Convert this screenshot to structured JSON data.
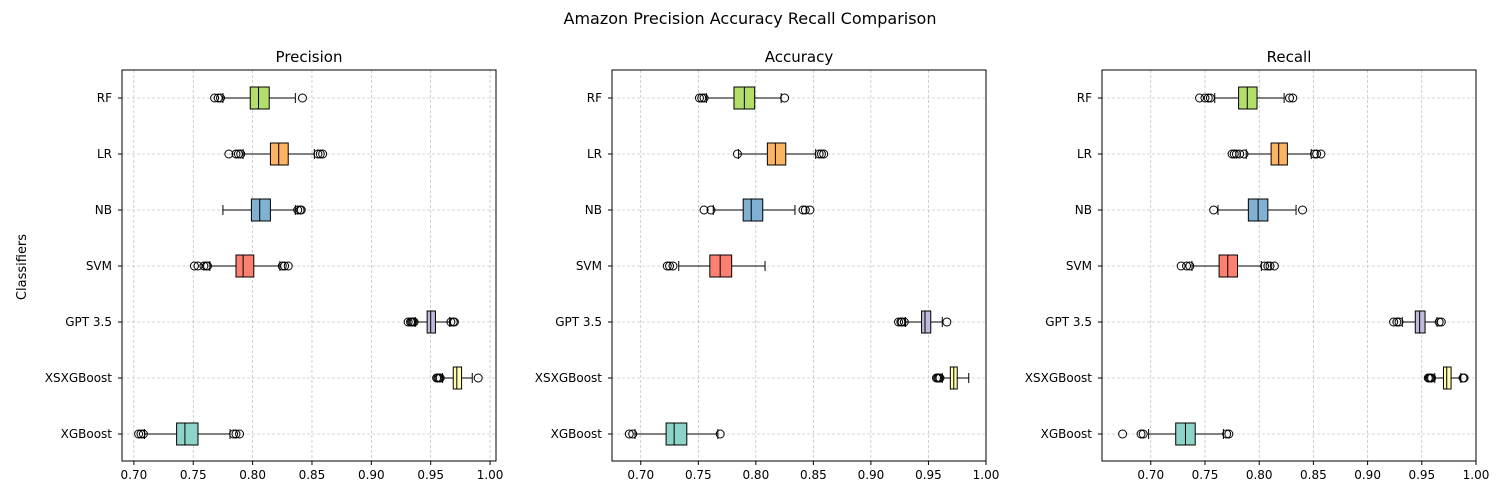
{
  "suptitle": "Amazon Precision Accuracy Recall Comparison",
  "ylabel": "Classifiers",
  "colors": {
    "XGBoost": "#8dd3c7",
    "XSXGBoost": "#ffffb3",
    "GPT 3.5": "#bebada",
    "SVM": "#fb8072",
    "NB": "#80b1d3",
    "LR": "#fdb462",
    "RF": "#b3de69"
  },
  "chart_data": [
    {
      "type": "boxplot",
      "orientation": "horizontal",
      "title": "Precision",
      "xlim": [
        0.69,
        1.005
      ],
      "xticks": [
        "0.70",
        "0.75",
        "0.80",
        "0.85",
        "0.90",
        "0.95",
        "1.00"
      ],
      "grid": true,
      "categories": [
        "XGBoost",
        "XSXGBoost",
        "GPT 3.5",
        "SVM",
        "NB",
        "LR",
        "RF"
      ],
      "boxes": [
        {
          "label": "XGBoost",
          "whislo": 0.709,
          "q1": 0.736,
          "med": 0.743,
          "q3": 0.754,
          "whishi": 0.781,
          "fliers": [
            0.704,
            0.706,
            0.708,
            0.784,
            0.786,
            0.789
          ]
        },
        {
          "label": "XSXGBoost",
          "whislo": 0.96,
          "q1": 0.969,
          "med": 0.972,
          "q3": 0.976,
          "whishi": 0.985,
          "fliers": [
            0.955,
            0.956,
            0.957,
            0.958,
            0.99
          ]
        },
        {
          "label": "GPT 3.5",
          "whislo": 0.937,
          "q1": 0.947,
          "med": 0.95,
          "q3": 0.954,
          "whishi": 0.966,
          "fliers": [
            0.931,
            0.933,
            0.934,
            0.935,
            0.936,
            0.967,
            0.969,
            0.97
          ]
        },
        {
          "label": "SVM",
          "whislo": 0.764,
          "q1": 0.786,
          "med": 0.792,
          "q3": 0.801,
          "whishi": 0.823,
          "fliers": [
            0.751,
            0.754,
            0.759,
            0.761,
            0.762,
            0.825,
            0.827,
            0.83
          ]
        },
        {
          "label": "NB",
          "whislo": 0.775,
          "q1": 0.799,
          "med": 0.806,
          "q3": 0.815,
          "whishi": 0.836,
          "fliers": [
            0.838,
            0.84,
            0.841
          ]
        },
        {
          "label": "LR",
          "whislo": 0.792,
          "q1": 0.815,
          "med": 0.822,
          "q3": 0.83,
          "whishi": 0.852,
          "fliers": [
            0.78,
            0.786,
            0.788,
            0.79,
            0.855,
            0.857,
            0.859
          ]
        },
        {
          "label": "RF",
          "whislo": 0.775,
          "q1": 0.798,
          "med": 0.805,
          "q3": 0.814,
          "whishi": 0.836,
          "fliers": [
            0.768,
            0.771,
            0.773,
            0.842
          ]
        }
      ]
    },
    {
      "type": "boxplot",
      "orientation": "horizontal",
      "title": "Accuracy",
      "xlim": [
        0.675,
        1.0
      ],
      "xticks": [
        "0.70",
        "0.75",
        "0.80",
        "0.85",
        "0.90",
        "0.95",
        "1.00"
      ],
      "grid": true,
      "categories": [
        "XGBoost",
        "XSXGBoost",
        "GPT 3.5",
        "SVM",
        "NB",
        "LR",
        "RF"
      ],
      "boxes": [
        {
          "label": "XGBoost",
          "whislo": 0.695,
          "q1": 0.722,
          "med": 0.729,
          "q3": 0.74,
          "whishi": 0.767,
          "fliers": [
            0.69,
            0.693,
            0.769
          ]
        },
        {
          "label": "XSXGBoost",
          "whislo": 0.962,
          "q1": 0.969,
          "med": 0.972,
          "q3": 0.975,
          "whishi": 0.985,
          "fliers": [
            0.957,
            0.958,
            0.959,
            0.96
          ]
        },
        {
          "label": "GPT 3.5",
          "whislo": 0.93,
          "q1": 0.944,
          "med": 0.947,
          "q3": 0.952,
          "whishi": 0.962,
          "fliers": [
            0.924,
            0.926,
            0.927,
            0.929,
            0.966
          ]
        },
        {
          "label": "SVM",
          "whislo": 0.733,
          "q1": 0.76,
          "med": 0.769,
          "q3": 0.779,
          "whishi": 0.808,
          "fliers": [
            0.723,
            0.725,
            0.728
          ]
        },
        {
          "label": "NB",
          "whislo": 0.763,
          "q1": 0.789,
          "med": 0.796,
          "q3": 0.806,
          "whishi": 0.834,
          "fliers": [
            0.755,
            0.761,
            0.841,
            0.843,
            0.847
          ]
        },
        {
          "label": "LR",
          "whislo": 0.785,
          "q1": 0.81,
          "med": 0.817,
          "q3": 0.826,
          "whishi": 0.852,
          "fliers": [
            0.784,
            0.855,
            0.857,
            0.859
          ]
        },
        {
          "label": "RF",
          "whislo": 0.757,
          "q1": 0.781,
          "med": 0.79,
          "q3": 0.799,
          "whishi": 0.822,
          "fliers": [
            0.751,
            0.753,
            0.755,
            0.825
          ]
        }
      ]
    },
    {
      "type": "boxplot",
      "orientation": "horizontal",
      "title": "Recall",
      "xlim": [
        0.655,
        1.0
      ],
      "xticks": [
        "0.70",
        "0.75",
        "0.80",
        "0.85",
        "0.90",
        "0.95",
        "1.00"
      ],
      "grid": true,
      "categories": [
        "XGBoost",
        "XSXGBoost",
        "GPT 3.5",
        "SVM",
        "NB",
        "LR",
        "RF"
      ],
      "boxes": [
        {
          "label": "XGBoost",
          "whislo": 0.698,
          "q1": 0.723,
          "med": 0.732,
          "q3": 0.741,
          "whishi": 0.767,
          "fliers": [
            0.674,
            0.691,
            0.693,
            0.77,
            0.772
          ]
        },
        {
          "label": "XSXGBoost",
          "whislo": 0.962,
          "q1": 0.97,
          "med": 0.973,
          "q3": 0.977,
          "whishi": 0.986,
          "fliers": [
            0.956,
            0.957,
            0.958,
            0.959,
            0.988,
            0.989
          ]
        },
        {
          "label": "GPT 3.5",
          "whislo": 0.932,
          "q1": 0.944,
          "med": 0.948,
          "q3": 0.953,
          "whishi": 0.964,
          "fliers": [
            0.924,
            0.927,
            0.929,
            0.966,
            0.968
          ]
        },
        {
          "label": "SVM",
          "whislo": 0.738,
          "q1": 0.763,
          "med": 0.771,
          "q3": 0.78,
          "whishi": 0.802,
          "fliers": [
            0.728,
            0.733,
            0.736,
            0.805,
            0.808,
            0.81,
            0.814
          ]
        },
        {
          "label": "NB",
          "whislo": 0.762,
          "q1": 0.79,
          "med": 0.799,
          "q3": 0.808,
          "whishi": 0.834,
          "fliers": [
            0.758,
            0.84
          ]
        },
        {
          "label": "LR",
          "whislo": 0.788,
          "q1": 0.811,
          "med": 0.818,
          "q3": 0.826,
          "whishi": 0.848,
          "fliers": [
            0.775,
            0.777,
            0.779,
            0.782,
            0.786,
            0.851,
            0.853,
            0.857
          ]
        },
        {
          "label": "RF",
          "whislo": 0.759,
          "q1": 0.781,
          "med": 0.789,
          "q3": 0.798,
          "whishi": 0.823,
          "fliers": [
            0.745,
            0.75,
            0.753,
            0.755,
            0.828,
            0.831
          ]
        }
      ]
    }
  ]
}
